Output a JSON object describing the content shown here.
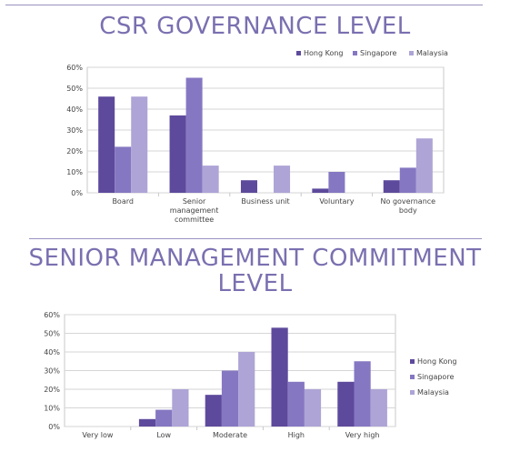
{
  "chart_data": [
    {
      "type": "bar",
      "title": "CSR GOVERNANCE LEVEL",
      "categories": [
        [
          "Board"
        ],
        [
          "Senior",
          "management",
          "committee"
        ],
        [
          "Business unit"
        ],
        [
          "Voluntary"
        ],
        [
          "No governance",
          "body"
        ]
      ],
      "series": [
        {
          "name": "Hong Kong",
          "values": [
            46,
            37,
            6,
            2,
            6
          ],
          "color": "#5e4a9c"
        },
        {
          "name": "Singapore",
          "values": [
            22,
            55,
            0,
            10,
            12
          ],
          "color": "#8677c2"
        },
        {
          "name": "Malaysia",
          "values": [
            46,
            13,
            13,
            0,
            26
          ],
          "color": "#aea4d6"
        }
      ],
      "yticks": [
        "0%",
        "10%",
        "20%",
        "30%",
        "40%",
        "50%",
        "60%"
      ],
      "ylim": [
        0,
        60
      ],
      "legend_position": "top-right",
      "grid": true
    },
    {
      "type": "bar",
      "title": "SENIOR MANAGEMENT COMMITMENT LEVEL",
      "categories": [
        [
          "Very low"
        ],
        [
          "Low"
        ],
        [
          "Moderate"
        ],
        [
          "High"
        ],
        [
          "Very high"
        ]
      ],
      "series": [
        {
          "name": "Hong Kong",
          "values": [
            0,
            4,
            17,
            53,
            24
          ],
          "color": "#5e4a9c"
        },
        {
          "name": "Singapore",
          "values": [
            0,
            9,
            30,
            24,
            35
          ],
          "color": "#8677c2"
        },
        {
          "name": "Malaysia",
          "values": [
            0,
            20,
            40,
            20,
            20
          ],
          "color": "#aea4d6"
        }
      ],
      "yticks": [
        "0%",
        "10%",
        "20%",
        "30%",
        "40%",
        "50%",
        "60%"
      ],
      "ylim": [
        0,
        60
      ],
      "legend_position": "right",
      "grid": true
    }
  ]
}
